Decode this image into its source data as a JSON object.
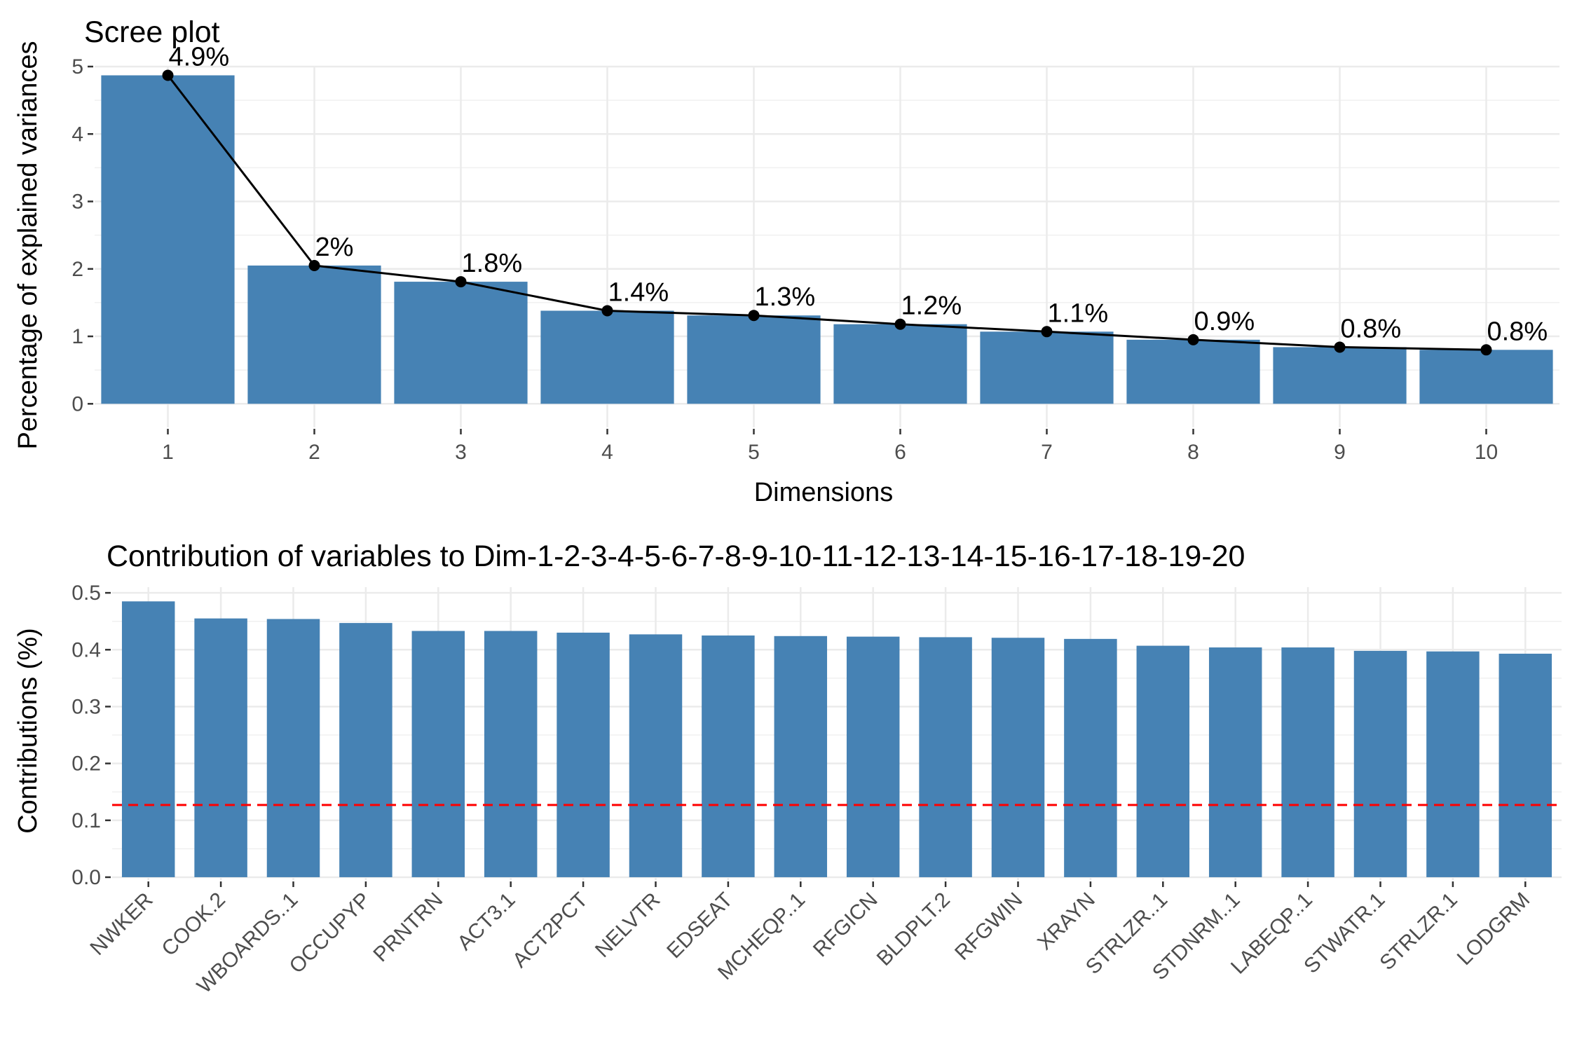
{
  "chart_data": [
    {
      "type": "bar",
      "title": "Scree plot",
      "xlabel": "Dimensions",
      "ylabel": "Percentage of explained variances",
      "categories": [
        "1",
        "2",
        "3",
        "4",
        "5",
        "6",
        "7",
        "8",
        "9",
        "10"
      ],
      "values": [
        4.87,
        2.05,
        1.81,
        1.38,
        1.31,
        1.18,
        1.07,
        0.95,
        0.84,
        0.8
      ],
      "data_labels": [
        "4.9%",
        "2%",
        "1.8%",
        "1.4%",
        "1.3%",
        "1.2%",
        "1.1%",
        "0.9%",
        "0.8%",
        "0.8%"
      ],
      "ylim": [
        -0.35,
        5.0
      ],
      "yticks": [
        0,
        1,
        2,
        3,
        4,
        5
      ],
      "line_overlay": true,
      "bar_color": "#4682B4",
      "line_color": "#000000",
      "grid": true
    },
    {
      "type": "bar",
      "title": "Contribution of variables to Dim-1-2-3-4-5-6-7-8-9-10-11-12-13-14-15-16-17-18-19-20",
      "xlabel": "",
      "ylabel": "Contributions (%)",
      "categories": [
        "NWKER",
        "COOK.2",
        "WBOARDS..1",
        "OCCUPYP",
        "PRNTRN",
        "ACT3.1",
        "ACT2PCT",
        "NELVTR",
        "EDSEAT",
        "MCHEQP..1",
        "RFGICN",
        "BLDPLT.2",
        "RFGWIN",
        "XRAYN",
        "STRLZR..1",
        "STDNRM..1",
        "LABEQP..1",
        "STWATR.1",
        "STRLZR.1",
        "LODGRM"
      ],
      "values": [
        0.485,
        0.455,
        0.454,
        0.447,
        0.433,
        0.433,
        0.43,
        0.427,
        0.425,
        0.424,
        0.423,
        0.422,
        0.421,
        0.419,
        0.407,
        0.404,
        0.404,
        0.398,
        0.397,
        0.393
      ],
      "ylim": [
        -0.005,
        0.51
      ],
      "yticks": [
        0.0,
        0.1,
        0.2,
        0.3,
        0.4,
        0.5
      ],
      "ytick_labels": [
        "0.0",
        "0.1",
        "0.2",
        "0.3",
        "0.4",
        "0.5"
      ],
      "reference_line": 0.127,
      "reference_line_color": "#FF0000",
      "bar_color": "#4682B4",
      "grid": true
    }
  ]
}
